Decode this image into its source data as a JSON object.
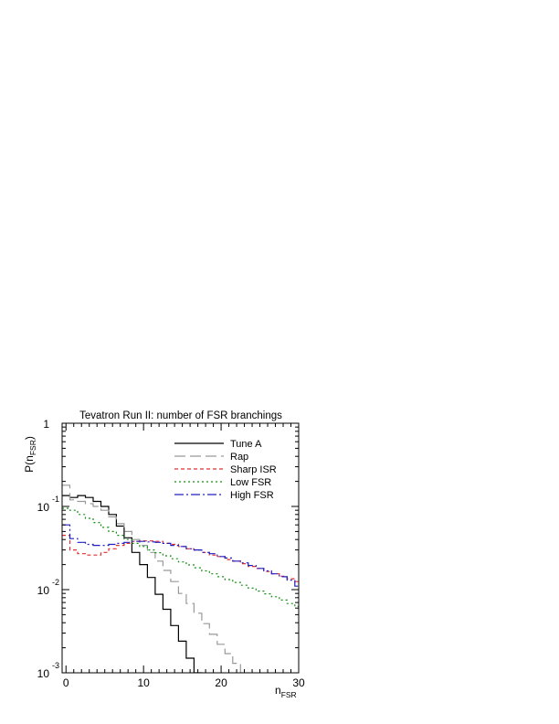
{
  "chart_data": {
    "type": "line",
    "title": "Tevatron Run II: number of FSR branchings",
    "xlabel": "n",
    "xlabel_sub": "FSR",
    "ylabel": "P(n",
    "ylabel_sub": "FSR",
    "ylabel_close": ")",
    "xlim": [
      -0.5,
      30
    ],
    "ylim": [
      0.001,
      1
    ],
    "yscale": "log",
    "grid": false,
    "legend_position": "top-right",
    "x_ticks": [
      "0",
      "10",
      "20",
      "30"
    ],
    "y_ticks": [
      {
        "base": "1",
        "exp": ""
      },
      {
        "base": "10",
        "exp": "-1"
      },
      {
        "base": "10",
        "exp": "-2"
      },
      {
        "base": "10",
        "exp": "-3"
      }
    ],
    "series": [
      {
        "name": "Tune A",
        "color": "#000000",
        "dash": "",
        "values": [
          0.135,
          0.128,
          0.135,
          0.128,
          0.115,
          0.1,
          0.08,
          0.058,
          0.042,
          0.028,
          0.02,
          0.014,
          0.0088,
          0.0058,
          0.0037,
          0.0024,
          0.0015,
          0.001,
          0.0006
        ]
      },
      {
        "name": "Rap",
        "color": "#999999",
        "dash": "12,5",
        "values": [
          0.18,
          0.12,
          0.115,
          0.108,
          0.1,
          0.09,
          0.075,
          0.062,
          0.05,
          0.04,
          0.034,
          0.028,
          0.022,
          0.017,
          0.0125,
          0.009,
          0.0068,
          0.0052,
          0.0039,
          0.0029,
          0.0022,
          0.0017,
          0.0013,
          0.001,
          0.0008
        ]
      },
      {
        "name": "Sharp ISR",
        "color": "#e03030",
        "dash": "4,3",
        "values": [
          0.045,
          0.03,
          0.027,
          0.026,
          0.026,
          0.028,
          0.031,
          0.034,
          0.036,
          0.038,
          0.0385,
          0.0385,
          0.038,
          0.036,
          0.035,
          0.033,
          0.031,
          0.03,
          0.028,
          0.026,
          0.025,
          0.023,
          0.022,
          0.0205,
          0.019,
          0.018,
          0.0165,
          0.0155,
          0.0145,
          0.0135,
          0.0125
        ]
      },
      {
        "name": "Low FSR",
        "color": "#109010",
        "dash": "2,3",
        "values": [
          0.095,
          0.09,
          0.08,
          0.072,
          0.064,
          0.056,
          0.05,
          0.045,
          0.04,
          0.036,
          0.033,
          0.03,
          0.0278,
          0.0255,
          0.0235,
          0.0215,
          0.0198,
          0.0183,
          0.0168,
          0.0155,
          0.0143,
          0.0132,
          0.0122,
          0.0113,
          0.0104,
          0.0096,
          0.0089,
          0.0082,
          0.0075,
          0.0068,
          0.0063
        ]
      },
      {
        "name": "High FSR",
        "color": "#2020c0",
        "dash": "10,3,2,3",
        "values": [
          0.06,
          0.041,
          0.037,
          0.035,
          0.034,
          0.034,
          0.035,
          0.036,
          0.037,
          0.038,
          0.038,
          0.0375,
          0.037,
          0.036,
          0.034,
          0.033,
          0.031,
          0.03,
          0.028,
          0.027,
          0.025,
          0.024,
          0.022,
          0.021,
          0.0195,
          0.018,
          0.0168,
          0.0155,
          0.0143,
          0.013,
          0.011
        ]
      }
    ]
  }
}
